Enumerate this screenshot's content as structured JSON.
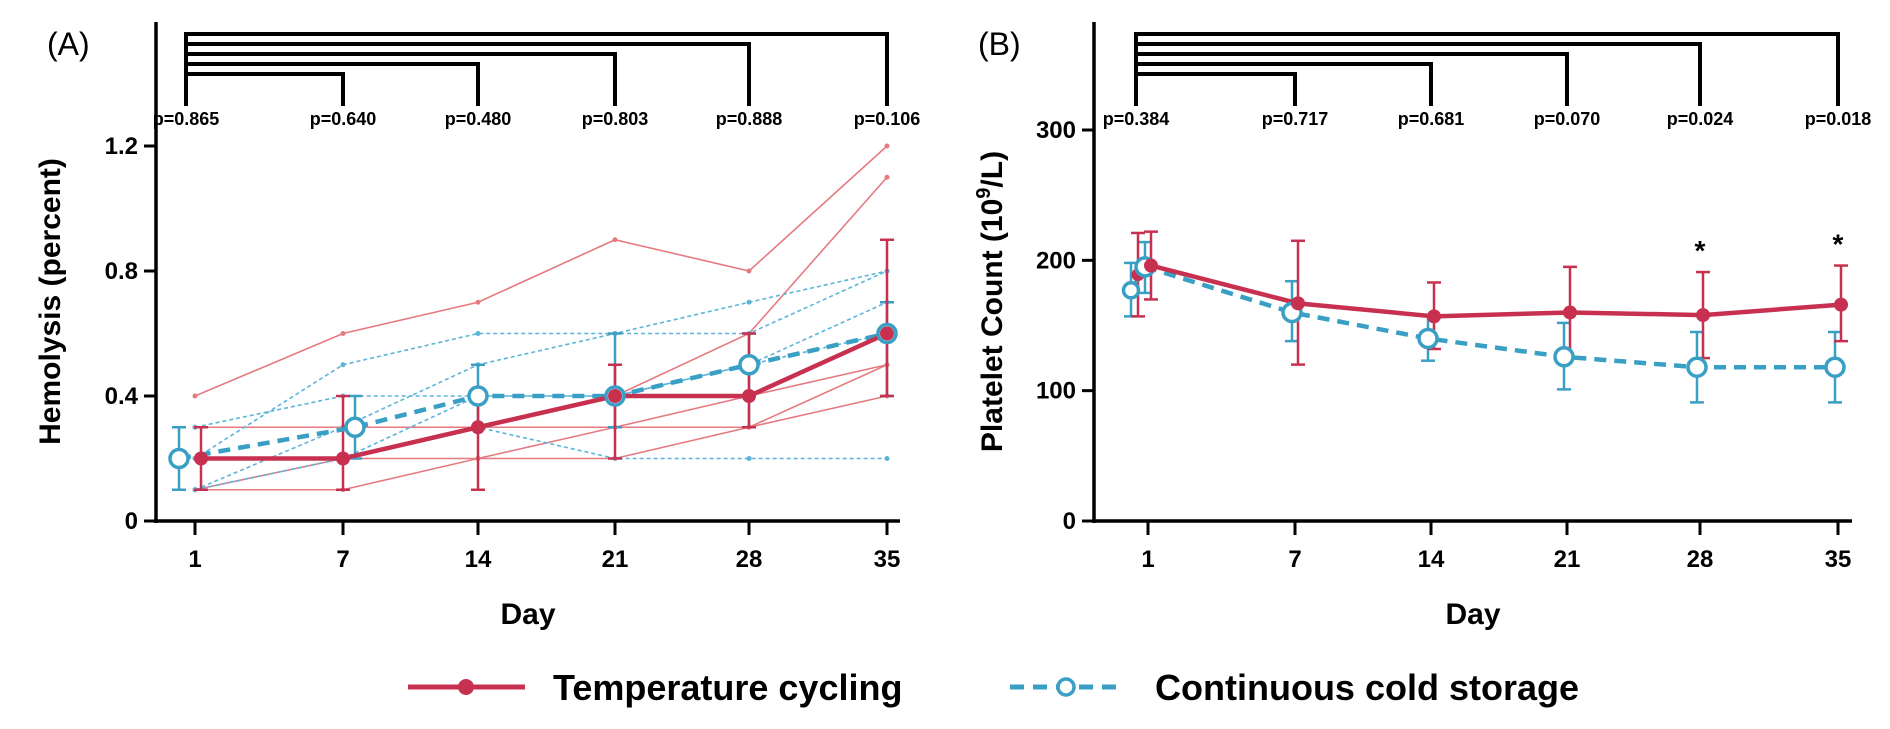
{
  "colors": {
    "temp_cycling": "#c8304f",
    "cold_storage": "#3a9fc4",
    "temp_individual": "#e57a80",
    "cold_individual": "#5bb5d8"
  },
  "legend": {
    "temp_cycling": "Temperature cycling",
    "cold_storage": "Continuous cold storage"
  },
  "chart_data": [
    {
      "type": "line",
      "panel_label": "(A)",
      "xlabel": "Day",
      "ylabel": "Hemolysis (percent)",
      "categories": [
        "1",
        "7",
        "14",
        "21",
        "28",
        "35"
      ],
      "x": [
        1,
        7,
        14,
        21,
        28,
        35
      ],
      "ylim": [
        0,
        1.45
      ],
      "yticks": [
        0,
        0.4,
        0.8,
        1.2
      ],
      "ytick_labels": [
        "0",
        "0.4",
        "0.8",
        "1.2"
      ],
      "pvalues": [
        "p=0.865",
        "p=0.640",
        "p=0.480",
        "p=0.803",
        "p=0.888",
        "p=0.106"
      ],
      "significance": [],
      "series": [
        {
          "name": "Temperature cycling",
          "values": [
            0.2,
            0.2,
            0.3,
            0.4,
            0.4,
            0.6
          ],
          "err_low": [
            0.1,
            0.1,
            0.1,
            0.2,
            0.3,
            0.4
          ],
          "err_high": [
            0.3,
            0.4,
            0.4,
            0.5,
            0.6,
            0.9
          ]
        },
        {
          "name": "Continuous cold storage",
          "values": [
            0.2,
            0.3,
            0.4,
            0.4,
            0.5,
            0.6
          ],
          "err_low": [
            0.1,
            0.2,
            0.3,
            0.3,
            0.3,
            0.4
          ],
          "err_high": [
            0.3,
            0.4,
            0.5,
            0.6,
            0.6,
            0.7
          ]
        }
      ],
      "individual_temp": [
        [
          0.4,
          0.6,
          0.7,
          0.9,
          0.8,
          1.2
        ],
        [
          0.1,
          0.2,
          0.3,
          0.4,
          0.6,
          1.1
        ],
        [
          0.3,
          0.3,
          0.3,
          0.3,
          0.4,
          0.5
        ],
        [
          0.1,
          0.1,
          0.2,
          0.2,
          0.3,
          0.4
        ],
        [
          0.2,
          0.2,
          0.2,
          0.3,
          0.3,
          0.5
        ]
      ],
      "individual_cold": [
        [
          0.2,
          0.5,
          0.6,
          0.6,
          0.7,
          0.8
        ],
        [
          0.1,
          0.3,
          0.5,
          0.6,
          0.6,
          0.8
        ],
        [
          0.3,
          0.4,
          0.4,
          0.4,
          0.5,
          0.6
        ],
        [
          0.2,
          0.2,
          0.4,
          0.4,
          0.5,
          0.7
        ],
        [
          0.1,
          0.2,
          0.3,
          0.2,
          0.2,
          0.2
        ]
      ]
    },
    {
      "type": "line",
      "panel_label": "(B)",
      "xlabel": "Day",
      "ylabel": "Platelet Count (10",
      "ylabel_sup": "9",
      "ylabel_tail": "/L)",
      "categories": [
        "1",
        "7",
        "14",
        "21",
        "28",
        "35"
      ],
      "x": [
        1,
        7,
        14,
        21,
        28,
        35
      ],
      "ylim": [
        0,
        380
      ],
      "yticks": [
        0,
        100,
        200,
        300
      ],
      "ytick_labels": [
        "0",
        "100",
        "200",
        "300"
      ],
      "pvalues": [
        "p=0.384",
        "p=0.717",
        "p=0.681",
        "p=0.070",
        "p=0.024",
        "p=0.018"
      ],
      "significance": [
        "",
        "",
        "",
        "",
        "*",
        "*"
      ],
      "series": [
        {
          "name": "Temperature cycling",
          "values": [
            196,
            167,
            157,
            160,
            158,
            166
          ],
          "err_low": [
            170,
            120,
            132,
            126,
            125,
            138
          ],
          "err_high": [
            222,
            215,
            183,
            195,
            191,
            196
          ]
        },
        {
          "name": "Continuous cold storage",
          "values": [
            195,
            160,
            140,
            126,
            118,
            118
          ],
          "err_low": [
            175,
            138,
            123,
            101,
            91,
            91
          ],
          "err_high": [
            214,
            184,
            158,
            152,
            145,
            145
          ]
        }
      ],
      "first_points": {
        "temp": 189,
        "temp_low": 157,
        "temp_high": 221,
        "cold": 177,
        "cold_low": 157,
        "cold_high": 198
      }
    }
  ]
}
